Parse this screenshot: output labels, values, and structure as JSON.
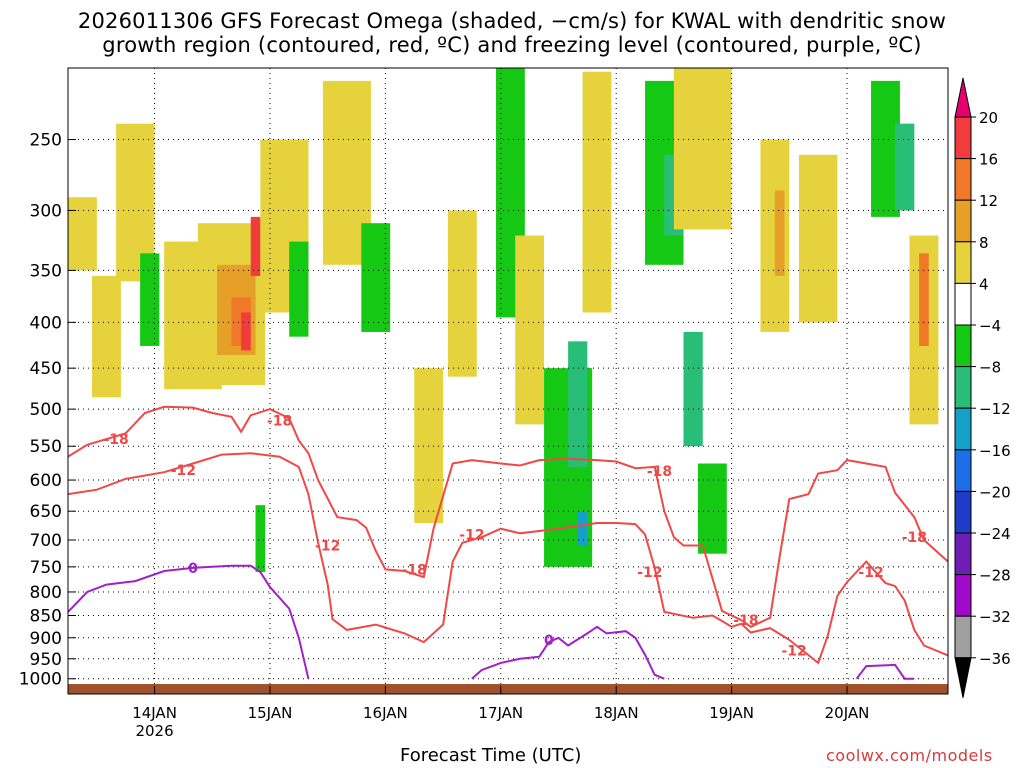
{
  "chart_data": {
    "type": "heatmap",
    "title": "2026011306 GFS Forecast Omega (shaded, −cm/s) for KWAL with dendritic snow",
    "subtitle": "growth region (contoured, red, ºC) and freezing level (contoured, purple, ºC)",
    "xlabel": "Forecast Time (UTC)",
    "ylabel": "",
    "x_range_hours": [
      0,
      183
    ],
    "x_ticks": [
      {
        "label": "14JAN",
        "sublabel": "2026",
        "hour": 18
      },
      {
        "label": "15JAN",
        "hour": 42
      },
      {
        "label": "16JAN",
        "hour": 66
      },
      {
        "label": "17JAN",
        "hour": 90
      },
      {
        "label": "18JAN",
        "hour": 114
      },
      {
        "label": "19JAN",
        "hour": 138
      },
      {
        "label": "20JAN",
        "hour": 162
      }
    ],
    "y_axis": "pressure (hPa), inverted",
    "ylim": [
      1000,
      200
    ],
    "y_ticks": [
      250,
      300,
      350,
      400,
      450,
      500,
      550,
      600,
      650,
      700,
      750,
      800,
      850,
      900,
      950,
      1000
    ],
    "colorbar": {
      "labels": [
        "20",
        "16",
        "12",
        "8",
        "4",
        "−4",
        "−8",
        "−12",
        "−16",
        "−20",
        "−24",
        "−28",
        "−32",
        "−36"
      ],
      "colors": [
        "#e6006e",
        "#f03c3c",
        "#f07828",
        "#e6a028",
        "#e6d23c",
        "#ffffff",
        "#14c814",
        "#28be78",
        "#14a0c8",
        "#1e6ee6",
        "#1e3cc8",
        "#6e1eb4",
        "#a00ac8",
        "#a0a0a0",
        "#000000"
      ]
    },
    "omega_blobs": [
      {
        "hour": 3,
        "p": 320,
        "dh": 3,
        "dp": 60,
        "color": "#e6d23c"
      },
      {
        "hour": 8,
        "p": 420,
        "dh": 3,
        "dp": 130,
        "color": "#e6d23c"
      },
      {
        "hour": 14,
        "p": 300,
        "dh": 4,
        "dp": 120,
        "color": "#e6d23c"
      },
      {
        "hour": 17,
        "p": 380,
        "dh": 2,
        "dp": 90,
        "color": "#14c814"
      },
      {
        "hour": 26,
        "p": 400,
        "dh": 6,
        "dp": 150,
        "color": "#e6d23c"
      },
      {
        "hour": 34,
        "p": 390,
        "dh": 7,
        "dp": 160,
        "color": "#e6d23c"
      },
      {
        "hour": 35,
        "p": 390,
        "dh": 4,
        "dp": 90,
        "color": "#e6a028"
      },
      {
        "hour": 36,
        "p": 400,
        "dh": 2,
        "dp": 50,
        "color": "#f07828"
      },
      {
        "hour": 37,
        "p": 410,
        "dh": 1,
        "dp": 40,
        "color": "#f03c3c"
      },
      {
        "hour": 39,
        "p": 330,
        "dh": 1,
        "dp": 50,
        "color": "#f03c3c"
      },
      {
        "hour": 40,
        "p": 700,
        "dh": 1,
        "dp": 120,
        "color": "#14c814"
      },
      {
        "hour": 45,
        "p": 320,
        "dh": 5,
        "dp": 140,
        "color": "#e6d23c"
      },
      {
        "hour": 48,
        "p": 370,
        "dh": 2,
        "dp": 90,
        "color": "#14c814"
      },
      {
        "hour": 58,
        "p": 280,
        "dh": 5,
        "dp": 130,
        "color": "#e6d23c"
      },
      {
        "hour": 64,
        "p": 360,
        "dh": 3,
        "dp": 100,
        "color": "#14c814"
      },
      {
        "hour": 75,
        "p": 560,
        "dh": 3,
        "dp": 220,
        "color": "#e6d23c"
      },
      {
        "hour": 82,
        "p": 380,
        "dh": 3,
        "dp": 160,
        "color": "#e6d23c"
      },
      {
        "hour": 92,
        "p": 300,
        "dh": 3,
        "dp": 190,
        "color": "#14c814"
      },
      {
        "hour": 96,
        "p": 420,
        "dh": 3,
        "dp": 200,
        "color": "#e6d23c"
      },
      {
        "hour": 104,
        "p": 600,
        "dh": 5,
        "dp": 300,
        "color": "#14c814"
      },
      {
        "hour": 106,
        "p": 500,
        "dh": 2,
        "dp": 160,
        "color": "#28be78"
      },
      {
        "hour": 107,
        "p": 680,
        "dh": 1,
        "dp": 60,
        "color": "#14a0c8"
      },
      {
        "hour": 110,
        "p": 300,
        "dh": 3,
        "dp": 180,
        "color": "#e6d23c"
      },
      {
        "hour": 124,
        "p": 280,
        "dh": 4,
        "dp": 130,
        "color": "#14c814"
      },
      {
        "hour": 126,
        "p": 290,
        "dh": 2,
        "dp": 60,
        "color": "#28be78"
      },
      {
        "hour": 130,
        "p": 480,
        "dh": 2,
        "dp": 140,
        "color": "#28be78"
      },
      {
        "hour": 132,
        "p": 260,
        "dh": 6,
        "dp": 110,
        "color": "#e6d23c"
      },
      {
        "hour": 134,
        "p": 650,
        "dh": 3,
        "dp": 150,
        "color": "#14c814"
      },
      {
        "hour": 147,
        "p": 330,
        "dh": 3,
        "dp": 160,
        "color": "#e6d23c"
      },
      {
        "hour": 148,
        "p": 320,
        "dh": 1,
        "dp": 70,
        "color": "#e6a028"
      },
      {
        "hour": 156,
        "p": 330,
        "dh": 4,
        "dp": 140,
        "color": "#e6d23c"
      },
      {
        "hour": 170,
        "p": 260,
        "dh": 3,
        "dp": 90,
        "color": "#14c814"
      },
      {
        "hour": 174,
        "p": 270,
        "dh": 2,
        "dp": 60,
        "color": "#28be78"
      },
      {
        "hour": 178,
        "p": 420,
        "dh": 3,
        "dp": 200,
        "color": "#e6d23c"
      },
      {
        "hour": 178,
        "p": 380,
        "dh": 1,
        "dp": 90,
        "color": "#f07828"
      }
    ],
    "series": [
      {
        "name": "-12",
        "color": "#f04848",
        "points": [
          [
            0,
            622
          ],
          [
            6,
            615
          ],
          [
            12,
            598
          ],
          [
            20,
            588
          ],
          [
            26,
            575
          ],
          [
            32,
            562
          ],
          [
            38,
            560
          ],
          [
            44,
            565
          ],
          [
            48,
            580
          ],
          [
            50,
            622
          ],
          [
            52,
            705
          ],
          [
            54,
            785
          ],
          [
            55,
            858
          ],
          [
            58,
            882
          ],
          [
            64,
            870
          ],
          [
            70,
            890
          ],
          [
            74,
            910
          ],
          [
            78,
            870
          ],
          [
            80,
            740
          ],
          [
            82,
            705
          ],
          [
            86,
            695
          ],
          [
            90,
            680
          ],
          [
            94,
            688
          ],
          [
            100,
            682
          ],
          [
            106,
            675
          ],
          [
            110,
            670
          ],
          [
            114,
            670
          ],
          [
            118,
            672
          ],
          [
            120,
            690
          ],
          [
            122,
            752
          ],
          [
            124,
            842
          ],
          [
            130,
            855
          ],
          [
            134,
            850
          ],
          [
            136,
            862
          ],
          [
            138,
            875
          ],
          [
            140,
            868
          ],
          [
            142,
            888
          ],
          [
            146,
            878
          ],
          [
            150,
            905
          ],
          [
            156,
            960
          ],
          [
            158,
            895
          ],
          [
            160,
            808
          ],
          [
            162,
            780
          ],
          [
            166,
            740
          ],
          [
            170,
            782
          ],
          [
            172,
            788
          ],
          [
            174,
            818
          ],
          [
            176,
            882
          ],
          [
            178,
            918
          ],
          [
            183,
            942
          ]
        ],
        "labels": [
          {
            "text": "-12",
            "hour": 24,
            "p": 585
          },
          {
            "text": "-12",
            "hour": 54,
            "p": 710
          },
          {
            "text": "-12",
            "hour": 84,
            "p": 690
          },
          {
            "text": "-12",
            "hour": 121,
            "p": 760
          },
          {
            "text": "-12",
            "hour": 151,
            "p": 930
          },
          {
            "text": "-12",
            "hour": 167,
            "p": 760
          }
        ]
      },
      {
        "name": "-18",
        "color": "#f04848",
        "points": [
          [
            0,
            565
          ],
          [
            4,
            548
          ],
          [
            8,
            540
          ],
          [
            12,
            532
          ],
          [
            16,
            505
          ],
          [
            20,
            497
          ],
          [
            26,
            498
          ],
          [
            30,
            505
          ],
          [
            34,
            510
          ],
          [
            36,
            530
          ],
          [
            38,
            508
          ],
          [
            42,
            500
          ],
          [
            46,
            512
          ],
          [
            48,
            542
          ],
          [
            50,
            560
          ],
          [
            52,
            600
          ],
          [
            56,
            660
          ],
          [
            60,
            665
          ],
          [
            62,
            678
          ],
          [
            64,
            720
          ],
          [
            66,
            755
          ],
          [
            70,
            758
          ],
          [
            74,
            770
          ],
          [
            76,
            680
          ],
          [
            80,
            575
          ],
          [
            84,
            570
          ],
          [
            90,
            575
          ],
          [
            94,
            578
          ],
          [
            98,
            570
          ],
          [
            104,
            568
          ],
          [
            110,
            570
          ],
          [
            114,
            572
          ],
          [
            118,
            582
          ],
          [
            122,
            580
          ],
          [
            124,
            650
          ],
          [
            126,
            695
          ],
          [
            128,
            710
          ],
          [
            132,
            710
          ],
          [
            136,
            840
          ],
          [
            140,
            860
          ],
          [
            142,
            875
          ],
          [
            146,
            855
          ],
          [
            148,
            730
          ],
          [
            150,
            630
          ],
          [
            154,
            622
          ],
          [
            156,
            590
          ],
          [
            160,
            585
          ],
          [
            162,
            570
          ],
          [
            166,
            575
          ],
          [
            170,
            580
          ],
          [
            172,
            620
          ],
          [
            176,
            660
          ],
          [
            178,
            700
          ],
          [
            183,
            740
          ]
        ],
        "labels": [
          {
            "text": "-18",
            "hour": 10,
            "p": 540
          },
          {
            "text": "-18",
            "hour": 44,
            "p": 515
          },
          {
            "text": "-18",
            "hour": 72,
            "p": 755
          },
          {
            "text": "-18",
            "hour": 123,
            "p": 586
          },
          {
            "text": "-18",
            "hour": 141,
            "p": 860
          },
          {
            "text": "-18",
            "hour": 176,
            "p": 695
          }
        ]
      },
      {
        "name": "0",
        "color": "#a020c8",
        "points": [
          [
            0,
            842
          ],
          [
            4,
            800
          ],
          [
            8,
            785
          ],
          [
            14,
            778
          ],
          [
            20,
            758
          ],
          [
            26,
            752
          ],
          [
            30,
            750
          ],
          [
            34,
            748
          ],
          [
            38,
            748
          ],
          [
            40,
            760
          ],
          [
            42,
            790
          ],
          [
            46,
            835
          ],
          [
            48,
            900
          ],
          [
            50,
            1000
          ]
        ],
        "labels": [
          {
            "text": "0",
            "hour": 26,
            "p": 752
          }
        ]
      },
      {
        "name": "0b",
        "color": "#a020c8",
        "points": [
          [
            84,
            1000
          ],
          [
            86,
            978
          ],
          [
            90,
            960
          ],
          [
            94,
            950
          ],
          [
            98,
            945
          ],
          [
            100,
            910
          ],
          [
            102,
            900
          ],
          [
            104,
            918
          ],
          [
            108,
            890
          ],
          [
            110,
            875
          ],
          [
            112,
            890
          ],
          [
            116,
            885
          ],
          [
            118,
            900
          ],
          [
            120,
            940
          ],
          [
            122,
            990
          ],
          [
            124,
            1000
          ]
        ],
        "labels": [
          {
            "text": "0",
            "hour": 100,
            "p": 905
          }
        ]
      },
      {
        "name": "0c",
        "color": "#a020c8",
        "points": [
          [
            164,
            1000
          ],
          [
            166,
            968
          ],
          [
            172,
            965
          ],
          [
            174,
            1000
          ],
          [
            176,
            1000
          ]
        ],
        "labels": []
      }
    ],
    "grid": true,
    "legend": "colorbar-right"
  },
  "footer": {
    "credit": "coolwx.com/models"
  }
}
